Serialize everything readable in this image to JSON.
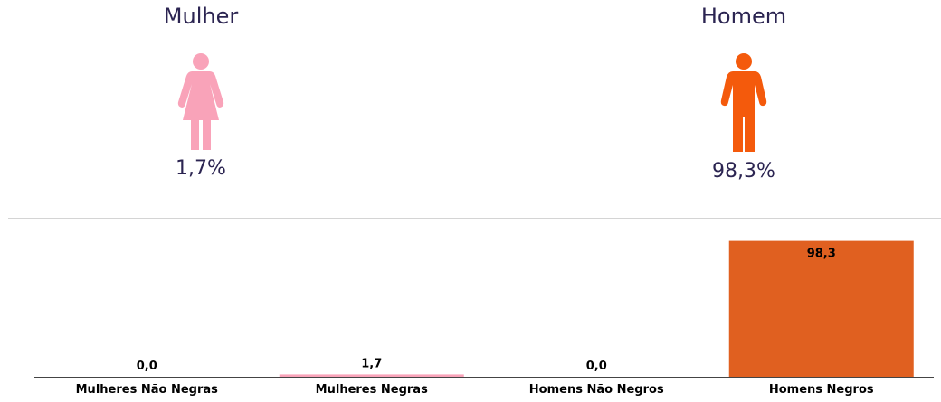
{
  "female": {
    "label": "Mulher",
    "percent_text": "1,7%",
    "icon": "female-person-icon",
    "color": "#f9a3b9"
  },
  "male": {
    "label": "Homem",
    "percent_text": "98,3%",
    "icon": "male-person-icon",
    "color": "#f45a0c"
  },
  "chart_data": {
    "type": "bar",
    "categories": [
      "Mulheres Não Negras",
      "Mulheres Negras",
      "Homens Não Negros",
      "Homens Negros"
    ],
    "values": [
      0.0,
      1.7,
      0.0,
      98.3
    ],
    "value_labels": [
      "0,0",
      "1,7",
      "0,0",
      "98,3"
    ],
    "colors": [
      "#f9a3b9",
      "#f9a3b9",
      "#e06020",
      "#e06020"
    ],
    "ylim": [
      0,
      100
    ],
    "title": "",
    "xlabel": "",
    "ylabel": "",
    "grid": false
  }
}
